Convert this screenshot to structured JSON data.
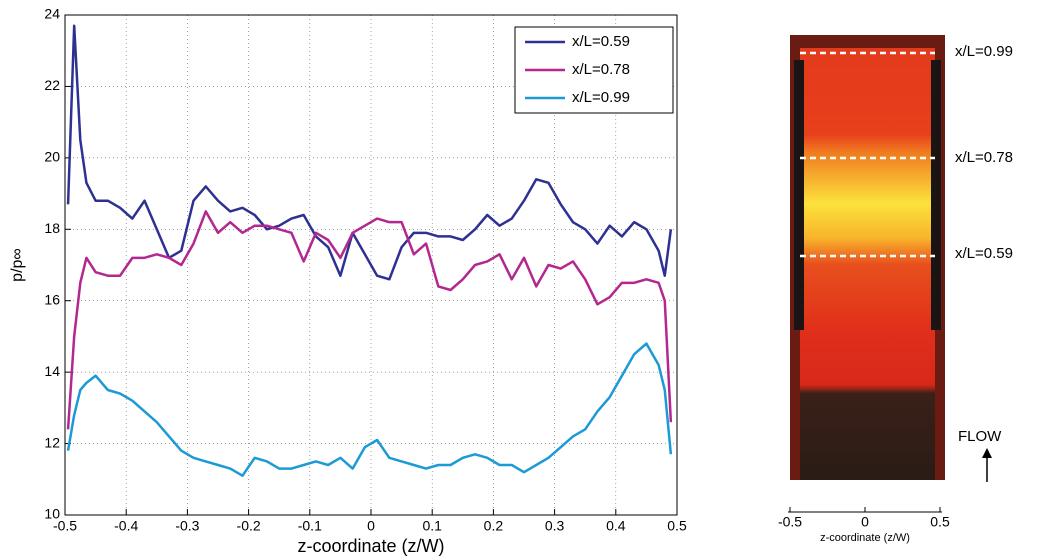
{
  "chart_data": [
    {
      "type": "line",
      "xlabel": "z-coordinate (z/W)",
      "ylabel": "p/p∞",
      "x": [
        -0.495,
        -0.485,
        -0.475,
        -0.465,
        -0.45,
        -0.43,
        -0.41,
        -0.39,
        -0.37,
        -0.35,
        -0.33,
        -0.31,
        -0.29,
        -0.27,
        -0.25,
        -0.23,
        -0.21,
        -0.19,
        -0.17,
        -0.15,
        -0.13,
        -0.11,
        -0.09,
        -0.07,
        -0.05,
        -0.03,
        -0.01,
        0.01,
        0.03,
        0.05,
        0.07,
        0.09,
        0.11,
        0.13,
        0.15,
        0.17,
        0.19,
        0.21,
        0.23,
        0.25,
        0.27,
        0.29,
        0.31,
        0.33,
        0.35,
        0.37,
        0.39,
        0.41,
        0.43,
        0.45,
        0.47,
        0.48,
        0.49
      ],
      "series": [
        {
          "name": "x/L=0.59",
          "color": "#2e3192",
          "values": [
            18.7,
            23.7,
            20.5,
            19.3,
            18.8,
            18.8,
            18.6,
            18.3,
            18.8,
            18.0,
            17.2,
            17.4,
            18.8,
            19.2,
            18.8,
            18.5,
            18.6,
            18.4,
            18.0,
            18.1,
            18.3,
            18.4,
            17.8,
            17.5,
            16.7,
            17.9,
            17.3,
            16.7,
            16.6,
            17.5,
            17.9,
            17.9,
            17.8,
            17.8,
            17.7,
            18.0,
            18.4,
            18.1,
            18.3,
            18.8,
            19.4,
            19.3,
            18.7,
            18.2,
            18.0,
            17.6,
            18.1,
            17.8,
            18.2,
            18.0,
            17.4,
            16.7,
            18.0
          ]
        },
        {
          "name": "x/L=0.78",
          "color": "#b4278f",
          "values": [
            12.4,
            15.0,
            16.5,
            17.2,
            16.8,
            16.7,
            16.7,
            17.2,
            17.2,
            17.3,
            17.2,
            17.0,
            17.6,
            18.5,
            17.9,
            18.2,
            17.9,
            18.1,
            18.1,
            18.0,
            17.9,
            17.1,
            17.9,
            17.7,
            17.2,
            17.9,
            18.1,
            18.3,
            18.2,
            18.2,
            17.3,
            17.6,
            16.4,
            16.3,
            16.6,
            17.0,
            17.1,
            17.3,
            16.6,
            17.2,
            16.4,
            17.0,
            16.9,
            17.1,
            16.6,
            15.9,
            16.1,
            16.5,
            16.5,
            16.6,
            16.5,
            16.0,
            12.6
          ]
        },
        {
          "name": "x/L=0.99",
          "color": "#1b9ad6",
          "values": [
            11.8,
            12.8,
            13.5,
            13.7,
            13.9,
            13.5,
            13.4,
            13.2,
            12.9,
            12.6,
            12.2,
            11.8,
            11.6,
            11.5,
            11.4,
            11.3,
            11.1,
            11.6,
            11.5,
            11.3,
            11.3,
            11.4,
            11.5,
            11.4,
            11.6,
            11.3,
            11.9,
            12.1,
            11.6,
            11.5,
            11.4,
            11.3,
            11.4,
            11.4,
            11.6,
            11.7,
            11.6,
            11.4,
            11.4,
            11.2,
            11.4,
            11.6,
            11.9,
            12.2,
            12.4,
            12.9,
            13.3,
            13.9,
            14.5,
            14.8,
            14.2,
            13.5,
            11.7
          ]
        }
      ],
      "xlim": [
        -0.5,
        0.5
      ],
      "xticks": [
        -0.5,
        -0.4,
        -0.3,
        -0.2,
        -0.1,
        0,
        0.1,
        0.2,
        0.3,
        0.4,
        0.5
      ],
      "ylim": [
        10,
        24
      ],
      "yticks": [
        10,
        12,
        14,
        16,
        18,
        20,
        22,
        24
      ],
      "grid": true,
      "legend": "northeast"
    },
    {
      "type": "image",
      "labels": [
        "x/L=0.99",
        "x/L=0.78",
        "x/L=0.59"
      ],
      "annotation": "FLOW",
      "xlabel": "z-coordinate (z/W)",
      "xlim": [
        -0.5,
        0.5
      ],
      "xticks": [
        -0.5,
        0,
        0.5
      ]
    }
  ]
}
